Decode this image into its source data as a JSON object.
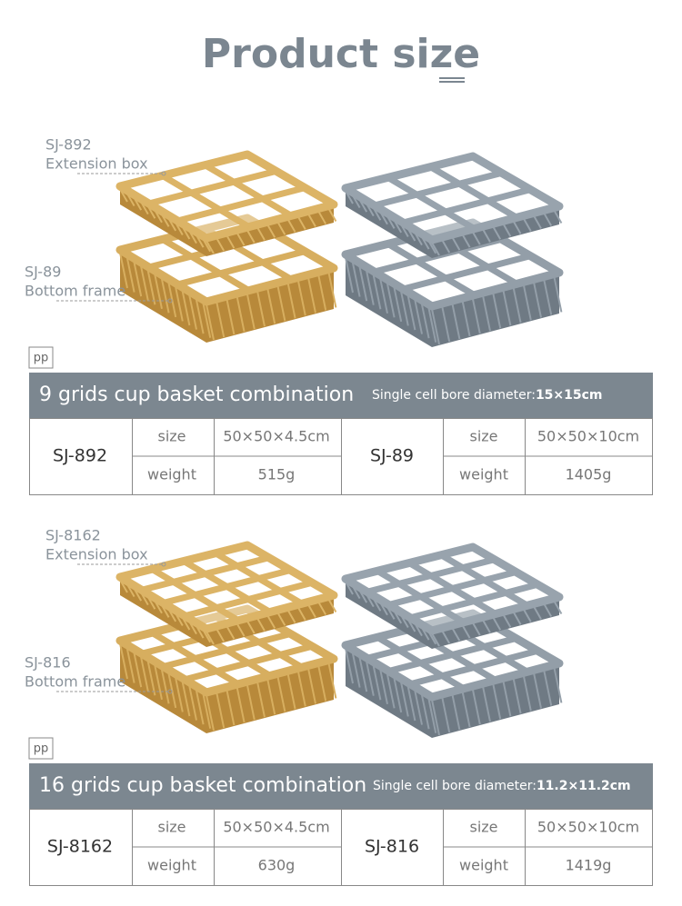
{
  "header": {
    "title": "Product size"
  },
  "sections": [
    {
      "labels": [
        {
          "code": "SJ-892",
          "name": "Extension box"
        },
        {
          "code": "SJ-89",
          "name": "Bottom frame"
        }
      ],
      "material": "pp",
      "table": {
        "title": "9 grids cup basket combination",
        "note_label": "Single cell bore diameter:",
        "note_value": "15×15cm",
        "products": [
          {
            "model": "SJ-892",
            "rows": [
              [
                "size",
                "50×50×4.5cm"
              ],
              [
                "weight",
                "515g"
              ]
            ]
          },
          {
            "model": "SJ-89",
            "rows": [
              [
                "size",
                "50×50×10cm"
              ],
              [
                "weight",
                "1405g"
              ]
            ]
          }
        ]
      }
    },
    {
      "labels": [
        {
          "code": "SJ-8162",
          "name": "Extension box"
        },
        {
          "code": "SJ-816",
          "name": "Bottom frame"
        }
      ],
      "material": "pp",
      "table": {
        "title": "16 grids cup basket combination",
        "note_label": "Single cell bore diameter:",
        "note_value": "11.2×11.2cm",
        "products": [
          {
            "model": "SJ-8162",
            "rows": [
              [
                "size",
                "50×50×4.5cm"
              ],
              [
                "weight",
                "630g"
              ]
            ]
          },
          {
            "model": "SJ-816",
            "rows": [
              [
                "size",
                "50×50×10cm"
              ],
              [
                "weight",
                "1419g"
              ]
            ]
          }
        ]
      }
    }
  ]
}
